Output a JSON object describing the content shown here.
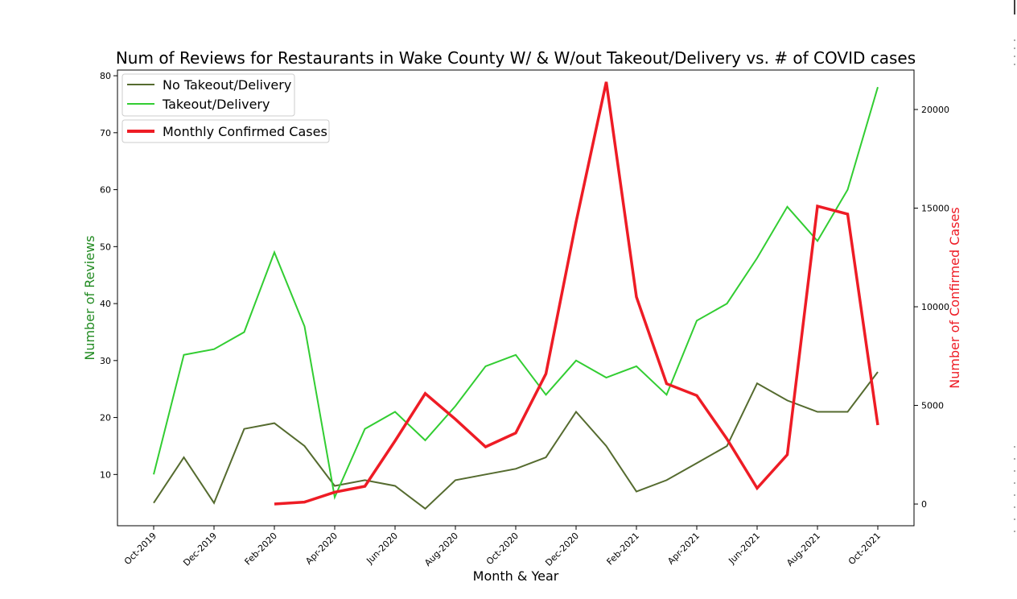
{
  "chart_data": {
    "type": "line",
    "title": "Num of Reviews for Restaurants in Wake County W/ & W/out Takeout/Delivery vs. # of COVID cases",
    "xlabel": "Month & Year",
    "ylabel": "Number of Reviews",
    "y2label": "Number of Confirmed Cases",
    "x": [
      "Oct-2019",
      "Nov-2019",
      "Dec-2019",
      "Jan-2020",
      "Feb-2020",
      "Mar-2020",
      "Apr-2020",
      "May-2020",
      "Jun-2020",
      "Jul-2020",
      "Aug-2020",
      "Sep-2020",
      "Oct-2020",
      "Nov-2020",
      "Dec-2020",
      "Jan-2021",
      "Feb-2021",
      "Mar-2021",
      "Apr-2021",
      "May-2021",
      "Jun-2021",
      "Jul-2021",
      "Aug-2021",
      "Sep-2021",
      "Oct-2021"
    ],
    "xticks": [
      "Oct-2019",
      "Dec-2019",
      "Feb-2020",
      "Apr-2020",
      "Jun-2020",
      "Aug-2020",
      "Oct-2020",
      "Dec-2020",
      "Feb-2021",
      "Apr-2021",
      "Jun-2021",
      "Aug-2021",
      "Oct-2021"
    ],
    "ylim": [
      1,
      81
    ],
    "yticks": [
      10,
      20,
      30,
      40,
      50,
      60,
      70,
      80
    ],
    "y2lim": [
      -1100,
      22000
    ],
    "y2ticks": [
      0,
      5000,
      10000,
      15000,
      20000
    ],
    "grid": false,
    "legend_placement": "top-left",
    "series": [
      {
        "name": "No Takeout/Delivery",
        "axis": "left",
        "color": "#556b2f",
        "values": [
          5,
          13,
          5,
          18,
          19,
          15,
          8,
          9,
          8,
          4,
          9,
          10,
          11,
          13,
          21,
          15,
          7,
          9,
          12,
          15,
          26,
          23,
          21,
          21,
          28
        ]
      },
      {
        "name": "Takeout/Delivery",
        "axis": "left",
        "color": "#32cd32",
        "values": [
          10,
          31,
          32,
          35,
          49,
          36,
          6,
          18,
          21,
          16,
          22,
          29,
          31,
          24,
          30,
          27,
          29,
          24,
          37,
          40,
          48,
          57,
          51,
          60,
          78
        ]
      },
      {
        "name": "Monthly Confirmed Cases",
        "axis": "right",
        "color": "#ee1c25",
        "values": [
          null,
          null,
          null,
          null,
          0,
          100,
          600,
          900,
          3200,
          5600,
          4300,
          2900,
          3600,
          6600,
          14300,
          21400,
          10500,
          6100,
          5500,
          3300,
          800,
          2500,
          15100,
          14700,
          4000
        ]
      }
    ]
  }
}
